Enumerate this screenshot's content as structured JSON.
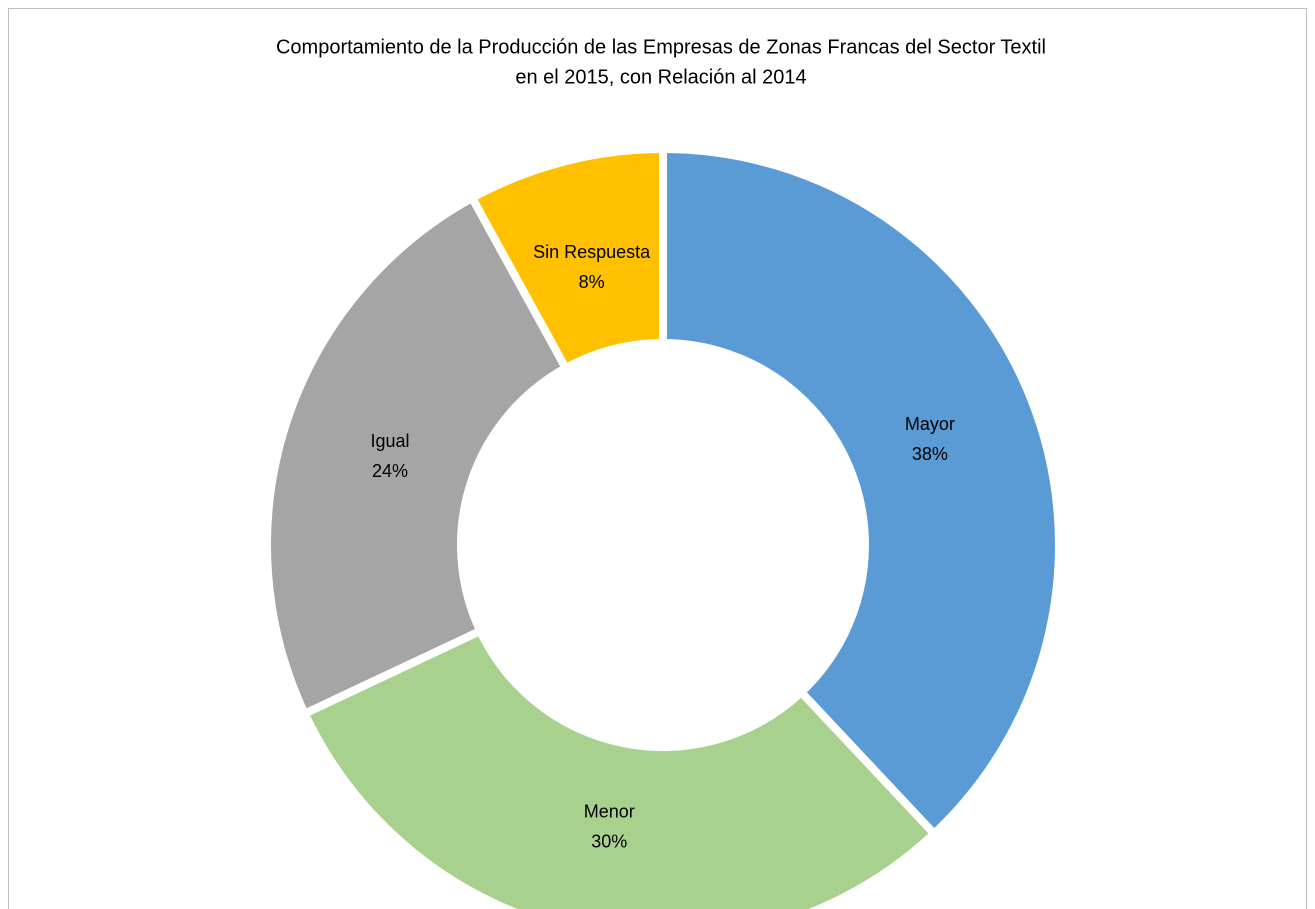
{
  "chart_data": {
    "type": "donut",
    "title": [
      "Comportamiento de la Producción de las Empresas de Zonas Francas del Sector Textil",
      "en el 2015, con Relación al 2014"
    ],
    "categories": [
      "Mayor",
      "Menor",
      "Igual",
      "Sin Respuesta"
    ],
    "values": [
      38,
      30,
      24,
      8
    ],
    "value_labels": [
      "38%",
      "30%",
      "24%",
      "8%"
    ],
    "colors": [
      "#5b9bd5",
      "#a9d18e",
      "#a5a5a5",
      "#ffc000"
    ]
  }
}
